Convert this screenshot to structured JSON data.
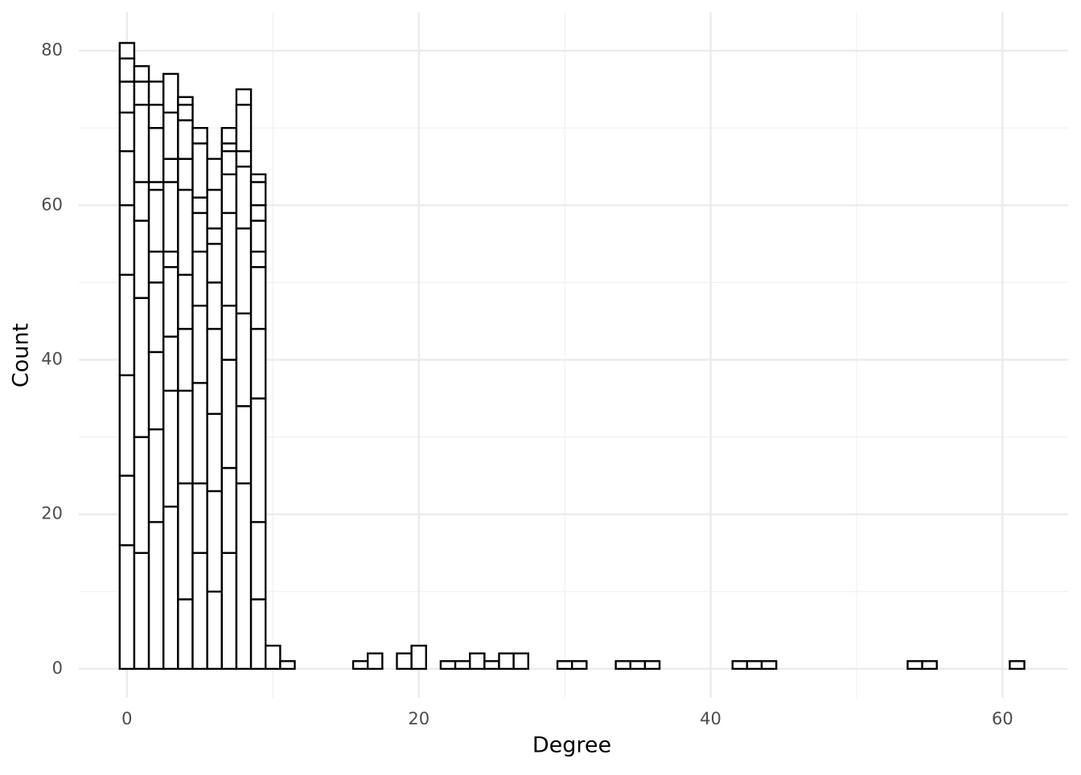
{
  "chart_data": {
    "type": "stacked-histogram",
    "x_label": "Degree",
    "y_label": "Count",
    "x": [
      0,
      1,
      2,
      3,
      4,
      5,
      6,
      7,
      8,
      9,
      10,
      11,
      16,
      17,
      19,
      20,
      22,
      23,
      24,
      25,
      26,
      27,
      30,
      31,
      34,
      35,
      36,
      42,
      43,
      44,
      54,
      55,
      61
    ],
    "segments": [
      [
        16,
        9,
        13,
        13,
        9,
        7,
        5,
        4,
        3,
        2
      ],
      [
        15,
        15,
        18,
        10,
        5,
        10,
        3,
        2
      ],
      [
        19,
        12,
        10,
        9,
        4,
        8,
        1,
        7,
        3,
        3
      ],
      [
        21,
        15,
        7,
        9,
        2,
        9,
        3,
        6,
        5
      ],
      [
        9,
        15,
        12,
        8,
        7,
        11,
        4,
        5,
        2,
        1
      ],
      [
        15,
        9,
        13,
        10,
        7,
        5,
        2,
        7,
        2
      ],
      [
        10,
        13,
        10,
        11,
        6,
        5,
        2,
        5,
        4
      ],
      [
        15,
        11,
        14,
        7,
        12,
        5,
        3,
        1,
        2
      ],
      [
        24,
        10,
        12,
        11,
        8,
        2,
        6,
        2
      ],
      [
        9,
        10,
        16,
        9,
        8,
        2,
        4,
        2,
        3,
        1
      ],
      [
        3
      ],
      [
        1
      ],
      [
        1
      ],
      [
        2
      ],
      [
        2
      ],
      [
        3
      ],
      [
        1
      ],
      [
        1
      ],
      [
        2
      ],
      [
        1
      ],
      [
        2
      ],
      [
        2
      ],
      [
        1
      ],
      [
        1
      ],
      [
        1
      ],
      [
        1
      ],
      [
        1
      ],
      [
        1
      ],
      [
        1
      ],
      [
        1
      ],
      [
        1
      ],
      [
        1
      ],
      [
        1
      ]
    ],
    "fill": "#ffffff",
    "stroke": "#000000",
    "xlim": [
      -3.3,
      64.5
    ],
    "ylim": [
      -3.75,
      85
    ],
    "xticks": [
      0,
      20,
      40,
      60
    ],
    "yticks": [
      0,
      20,
      40,
      60,
      80
    ],
    "xminor": [
      10,
      30,
      50
    ],
    "yminor": [
      10,
      30,
      50,
      70
    ],
    "grid": true
  }
}
